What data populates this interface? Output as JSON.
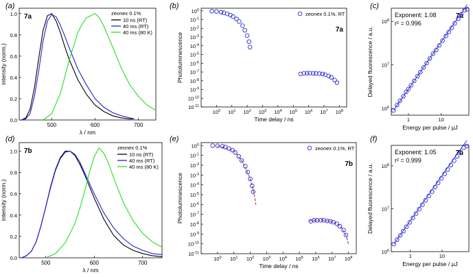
{
  "figure": {
    "colors": {
      "black": "#000000",
      "blue": "#1f1fd6",
      "green": "#22e022",
      "marker": "#2a2ad0",
      "fit": "#9a1f5a",
      "frame": "#000000"
    }
  },
  "chart_data": [
    {
      "type": "line",
      "panel": "(a)",
      "tag": "7a",
      "xlabel": "λ / nm",
      "ylabel": "intensity (norm.)",
      "xlim": [
        425,
        740
      ],
      "ylim": [
        0,
        1.05
      ],
      "xticks": [
        500,
        600,
        700
      ],
      "yticks": [
        0.0,
        0.2,
        0.4,
        0.6,
        0.8,
        1.0
      ],
      "ytick_labels": [
        "0.0",
        "0.2",
        "0.4",
        "0.6",
        "0.8",
        "1.0"
      ],
      "legend_title": "zeonex 0.1%",
      "legend_position": "top-right",
      "series": [
        {
          "name": "10 ns (RT)",
          "color": "#000000",
          "x": [
            430,
            440,
            450,
            460,
            470,
            480,
            490,
            500,
            510,
            520,
            530,
            540,
            560,
            580,
            600,
            620,
            640,
            660,
            680,
            690
          ],
          "y": [
            0.0,
            0.02,
            0.1,
            0.3,
            0.58,
            0.84,
            0.98,
            1.0,
            0.93,
            0.82,
            0.69,
            0.57,
            0.38,
            0.24,
            0.14,
            0.08,
            0.04,
            0.02,
            0.01,
            0.01
          ]
        },
        {
          "name": "40 ms (RT)",
          "color": "#1f1fd6",
          "x": [
            430,
            440,
            450,
            460,
            470,
            480,
            490,
            500,
            510,
            520,
            530,
            540,
            560,
            580,
            600,
            620,
            640,
            660,
            680,
            690
          ],
          "y": [
            0.0,
            0.01,
            0.06,
            0.22,
            0.46,
            0.74,
            0.93,
            0.99,
            0.97,
            0.89,
            0.79,
            0.68,
            0.48,
            0.33,
            0.2,
            0.12,
            0.07,
            0.04,
            0.02,
            0.01
          ]
        },
        {
          "name": "40 ms (80 K)",
          "color": "#22e022",
          "x": [
            480,
            500,
            520,
            540,
            560,
            570,
            580,
            590,
            600,
            610,
            620,
            640,
            660,
            680,
            700,
            720,
            740
          ],
          "y": [
            0.0,
            0.06,
            0.25,
            0.56,
            0.82,
            0.9,
            0.96,
            0.98,
            1.0,
            0.96,
            0.88,
            0.69,
            0.49,
            0.33,
            0.22,
            0.14,
            0.09
          ]
        }
      ]
    },
    {
      "type": "scatter",
      "panel": "(b)",
      "tag": "7a",
      "xlabel": "Time delay / ns",
      "ylabel": "Photoluminescence",
      "log_x": true,
      "log_y": true,
      "xlim": [
        0.1,
        300000000
      ],
      "ylim": [
        1e-11,
        2
      ],
      "xtick_exponents": [
        0,
        1,
        2,
        3,
        4,
        5,
        6,
        7,
        8
      ],
      "ytick_exponents": [
        0,
        -1,
        -2,
        -3,
        -4,
        -5,
        -6,
        -7,
        -8,
        -9,
        -10,
        -11
      ],
      "legend": "zeonex 0.1%, RT",
      "legend_position": "top-right",
      "series": [
        {
          "name": "zeonex 0.1%, RT",
          "x": [
            0.5,
            1,
            2,
            3,
            5,
            8,
            12,
            20,
            30,
            50,
            70,
            100,
            130,
            150,
            300000,
            500000,
            800000,
            1200000,
            2000000,
            3000000,
            5000000,
            8000000,
            12000000,
            20000000,
            30000000,
            50000000,
            70000000
          ],
          "y": [
            0.9,
            0.85,
            0.7,
            0.6,
            0.45,
            0.33,
            0.22,
            0.12,
            0.06,
            0.02,
            0.006,
            0.0015,
            0.0003,
            7e-05,
            6e-08,
            7e-08,
            7.5e-08,
            7.5e-08,
            7e-08,
            7e-08,
            6.5e-08,
            6e-08,
            5e-08,
            3.5e-08,
            2.5e-08,
            1.2e-08,
            6e-09
          ]
        }
      ]
    },
    {
      "type": "scatter",
      "panel": "(c)",
      "tag": "7a",
      "xlabel": "Energy per pulse / µJ",
      "ylabel": "Delayed fluorescence / a.u.",
      "log_x": true,
      "log_y": true,
      "xlim": [
        0.3,
        70
      ],
      "ylim": [
        700000,
        200000000
      ],
      "xticks": [
        1,
        10
      ],
      "ytick_exponents": [
        6,
        7,
        8
      ],
      "annotation_exponent": "Exponent: 1.08",
      "annotation_r2": "r² = 0.996",
      "fit_exponent": 1.08,
      "series": [
        {
          "name": "data",
          "x": [
            0.35,
            0.45,
            0.55,
            0.7,
            0.85,
            1.0,
            1.2,
            1.5,
            1.9,
            2.3,
            2.9,
            3.6,
            4.5,
            5.6,
            7,
            8.7,
            11,
            14,
            17,
            21,
            26,
            33,
            41,
            52,
            62
          ],
          "y": [
            900000,
            1200000,
            1500000,
            1900000,
            2400000,
            2800000,
            3400000,
            4300000,
            5500000,
            6800000,
            8700000,
            11000000,
            14000000,
            18000000,
            22000000,
            28000000,
            36000000,
            46000000,
            57000000,
            71000000,
            90000000,
            115000000,
            145000000,
            180000000,
            190000000
          ]
        }
      ]
    },
    {
      "type": "line",
      "panel": "(d)",
      "tag": "7b",
      "xlabel": "λ / nm",
      "ylabel": "intensity (norm.)",
      "xlim": [
        445,
        740
      ],
      "ylim": [
        0,
        1.08
      ],
      "xticks": [
        500,
        600,
        700
      ],
      "yticks": [
        0.0,
        0.2,
        0.4,
        0.6,
        0.8,
        1.0
      ],
      "ytick_labels": [
        "0.0",
        "0.2",
        "0.4",
        "0.6",
        "0.8",
        "1.0"
      ],
      "legend_title": "zeonex 0.1%",
      "legend_position": "top-right",
      "series": [
        {
          "name": "10 ns (RT)",
          "color": "#000000",
          "x": [
            450,
            460,
            470,
            480,
            490,
            500,
            510,
            520,
            530,
            540,
            550,
            560,
            570,
            580,
            600,
            620,
            640,
            660,
            680,
            700,
            720,
            740
          ],
          "y": [
            0.0,
            0.02,
            0.06,
            0.15,
            0.3,
            0.48,
            0.67,
            0.83,
            0.94,
            1.0,
            1.0,
            0.96,
            0.88,
            0.78,
            0.56,
            0.36,
            0.21,
            0.12,
            0.07,
            0.04,
            0.02,
            0.01
          ]
        },
        {
          "name": "40 ms (RT)",
          "color": "#1f1fd6",
          "x": [
            450,
            460,
            470,
            480,
            490,
            500,
            510,
            520,
            530,
            540,
            550,
            560,
            570,
            580,
            600,
            620,
            640,
            660,
            680,
            700,
            720,
            740
          ],
          "y": [
            0.0,
            0.02,
            0.06,
            0.15,
            0.3,
            0.48,
            0.66,
            0.82,
            0.93,
            0.99,
            1.0,
            0.97,
            0.9,
            0.8,
            0.6,
            0.42,
            0.28,
            0.18,
            0.11,
            0.07,
            0.04,
            0.03
          ]
        },
        {
          "name": "40 ms (80 K)",
          "color": "#22e022",
          "x": [
            500,
            520,
            540,
            560,
            570,
            580,
            590,
            600,
            610,
            620,
            630,
            640,
            660,
            680,
            700,
            720,
            740
          ],
          "y": [
            0.0,
            0.04,
            0.14,
            0.32,
            0.46,
            0.62,
            0.8,
            0.95,
            1.03,
            0.98,
            0.88,
            0.75,
            0.52,
            0.35,
            0.23,
            0.15,
            0.1
          ]
        }
      ]
    },
    {
      "type": "scatter",
      "panel": "(e)",
      "tag": "7b",
      "xlabel": "Time delay / ns",
      "ylabel": "Photoluminescence",
      "log_x": true,
      "log_y": true,
      "xlim": [
        0.1,
        300000000
      ],
      "ylim": [
        1e-11,
        2
      ],
      "xtick_exponents": [
        0,
        1,
        2,
        3,
        4,
        5,
        6,
        7,
        8
      ],
      "ytick_exponents": [
        0,
        -1,
        -2,
        -3,
        -4,
        -5,
        -6,
        -7,
        -8,
        -9,
        -10,
        -11
      ],
      "legend": "zeonex 0.1%, RT",
      "legend_position": "top-right",
      "series": [
        {
          "name": "zeonex 0.1%, RT",
          "x": [
            0.5,
            1,
            2,
            3,
            5,
            8,
            12,
            20,
            30,
            50,
            70,
            100,
            130,
            150,
            500000,
            800000,
            1200000,
            2000000,
            3000000,
            5000000,
            8000000,
            12000000,
            20000000,
            30000000,
            50000000,
            70000000
          ],
          "y": [
            1.0,
            0.95,
            0.85,
            0.7,
            0.5,
            0.35,
            0.2,
            0.08,
            0.03,
            0.008,
            0.002,
            0.0004,
            8e-05,
            2e-05,
            2e-08,
            2.5e-08,
            2.5e-08,
            2.5e-08,
            2.5e-08,
            2.2e-08,
            2e-08,
            1.6e-08,
            1.1e-08,
            6e-09,
            2.5e-09,
            8e-10
          ]
        }
      ],
      "fits": [
        {
          "x": [
            1,
            10,
            30,
            60,
            100,
            150,
            200,
            220
          ],
          "y": [
            0.95,
            0.3,
            0.03,
            0.003,
            0.0004,
            3e-05,
            3e-06,
            1e-06
          ]
        },
        {
          "x": [
            400000,
            1000000,
            3000000,
            8000000,
            20000000,
            40000000,
            70000000,
            100000000
          ],
          "y": [
            2.2e-08,
            2.5e-08,
            2.5e-08,
            2e-08,
            1.1e-08,
            4e-09,
            8e-10,
            1e-10
          ]
        }
      ]
    },
    {
      "type": "scatter",
      "panel": "(f)",
      "tag": "7b",
      "xlabel": "Energy per pulse / µJ",
      "ylabel": "Delayed fluorescence / a.u.",
      "log_x": true,
      "log_y": true,
      "xlim": [
        0.25,
        70
      ],
      "ylim": [
        1000000,
        300000000
      ],
      "xticks": [
        1,
        10
      ],
      "ytick_exponents": [
        6,
        7,
        8
      ],
      "annotation_exponent": "Exponent: 1.05",
      "annotation_r2": "r² = 0.999",
      "fit_exponent": 1.05,
      "series": [
        {
          "name": "data",
          "x": [
            0.3,
            0.38,
            0.48,
            0.6,
            0.75,
            0.95,
            1.2,
            1.5,
            1.9,
            2.4,
            3,
            3.8,
            4.8,
            6,
            7.5,
            9.5,
            12,
            15,
            19,
            24,
            30,
            38,
            48,
            60
          ],
          "y": [
            1500000,
            1900000,
            2400000,
            3000000,
            3800000,
            4800000,
            6100000,
            7700000,
            9800000,
            12400000,
            15700000,
            19800000,
            25000000,
            32000000,
            40000000,
            51000000,
            65000000,
            82000000,
            104000000,
            132000000,
            167000000,
            210000000,
            265000000,
            290000000
          ]
        }
      ]
    }
  ]
}
